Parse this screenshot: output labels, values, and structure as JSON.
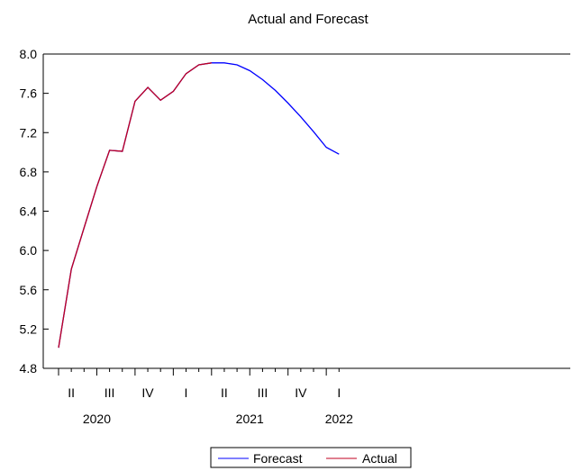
{
  "chart_data": {
    "type": "line",
    "title": "Actual and Forecast",
    "xlabel": "",
    "ylabel": "",
    "ylim": [
      4.8,
      8.0
    ],
    "yticks": [
      "4.8",
      "5.2",
      "5.6",
      "6.0",
      "6.4",
      "6.8",
      "7.2",
      "7.6",
      "8.0"
    ],
    "grid": false,
    "legend_position": "bottom-center",
    "x": [
      "2020-04",
      "2020-05",
      "2020-06",
      "2020-07",
      "2020-08",
      "2020-09",
      "2020-10",
      "2020-11",
      "2020-12",
      "2021-01",
      "2021-02",
      "2021-03",
      "2021-04",
      "2021-05",
      "2021-06",
      "2021-07",
      "2021-08",
      "2021-09",
      "2021-10",
      "2021-11",
      "2021-12",
      "2022-01",
      "2022-02"
    ],
    "quarter_labels": [
      {
        "label": "II",
        "month": "2020-05"
      },
      {
        "label": "III",
        "month": "2020-08"
      },
      {
        "label": "IV",
        "month": "2020-11"
      },
      {
        "label": "I",
        "month": "2021-02"
      },
      {
        "label": "II",
        "month": "2021-05"
      },
      {
        "label": "III",
        "month": "2021-08"
      },
      {
        "label": "IV",
        "month": "2021-11"
      },
      {
        "label": "I",
        "month": "2022-02"
      }
    ],
    "year_labels": [
      {
        "label": "2020",
        "month": "2020-07"
      },
      {
        "label": "2021",
        "month": "2021-07"
      },
      {
        "label": "2022",
        "month": "2022-02"
      }
    ],
    "series": [
      {
        "name": "Forecast",
        "color": "#0000ff",
        "values": [
          5.01,
          5.81,
          6.23,
          6.65,
          7.02,
          7.01,
          7.52,
          7.66,
          7.53,
          7.62,
          7.8,
          7.89,
          7.91,
          7.91,
          7.89,
          7.83,
          7.74,
          7.63,
          7.5,
          7.36,
          7.21,
          7.05,
          6.98
        ]
      },
      {
        "name": "Actual",
        "color": "#c00020",
        "values": [
          5.01,
          5.81,
          6.23,
          6.65,
          7.02,
          7.01,
          7.52,
          7.66,
          7.53,
          7.62,
          7.8,
          7.89,
          7.91,
          null,
          null,
          null,
          null,
          null,
          null,
          null,
          null,
          null,
          null
        ]
      }
    ]
  }
}
